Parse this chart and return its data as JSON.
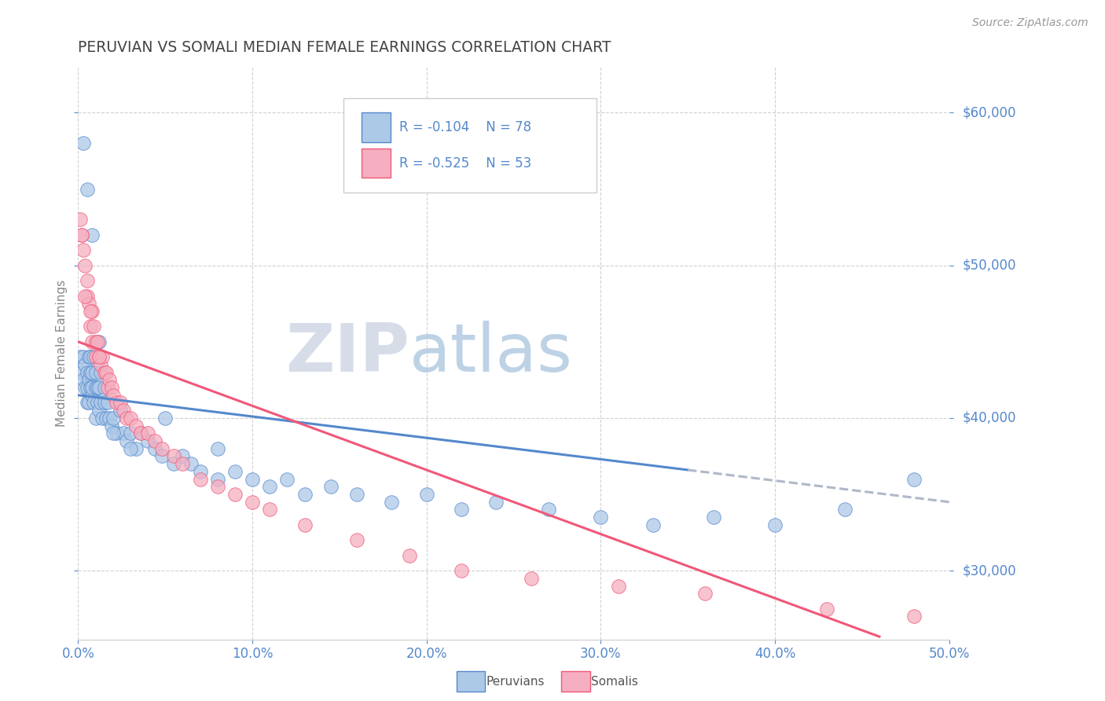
{
  "title": "PERUVIAN VS SOMALI MEDIAN FEMALE EARNINGS CORRELATION CHART",
  "source": "Source: ZipAtlas.com",
  "ylabel": "Median Female Earnings",
  "xlim": [
    0.0,
    0.5
  ],
  "ylim": [
    25500,
    63000
  ],
  "yticks": [
    30000,
    40000,
    50000,
    60000
  ],
  "ytick_labels": [
    "$30,000",
    "$40,000",
    "$50,000",
    "$60,000"
  ],
  "xticks": [
    0.0,
    0.1,
    0.2,
    0.3,
    0.4,
    0.5
  ],
  "xtick_labels": [
    "0.0%",
    "10.0%",
    "20.0%",
    "30.0%",
    "40.0%",
    "50.0%"
  ],
  "peruvian_color": "#adc9e8",
  "somali_color": "#f5afc0",
  "peruvian_line_color": "#5588cc",
  "somali_line_color": "#f05878",
  "regression_ext_color": "#b0b8c8",
  "watermark_zip_color": "#d0d8e4",
  "watermark_atlas_color": "#b8ccdd",
  "background_color": "#ffffff",
  "grid_color": "#cccccc",
  "title_color": "#444444",
  "axis_tick_color": "#5588cc",
  "ylabel_color": "#888888",
  "peruvian_R": "-0.104",
  "peruvian_N": "78",
  "somali_R": "-0.525",
  "somali_N": "53",
  "peruvian_x": [
    0.001,
    0.002,
    0.003,
    0.003,
    0.004,
    0.004,
    0.005,
    0.005,
    0.005,
    0.006,
    0.006,
    0.006,
    0.007,
    0.007,
    0.007,
    0.008,
    0.008,
    0.008,
    0.009,
    0.009,
    0.01,
    0.01,
    0.01,
    0.011,
    0.011,
    0.012,
    0.012,
    0.013,
    0.013,
    0.014,
    0.015,
    0.015,
    0.016,
    0.017,
    0.018,
    0.019,
    0.02,
    0.022,
    0.024,
    0.026,
    0.028,
    0.03,
    0.033,
    0.036,
    0.04,
    0.044,
    0.048,
    0.055,
    0.06,
    0.065,
    0.07,
    0.08,
    0.09,
    0.1,
    0.11,
    0.12,
    0.13,
    0.145,
    0.16,
    0.18,
    0.2,
    0.22,
    0.24,
    0.27,
    0.3,
    0.33,
    0.365,
    0.4,
    0.44,
    0.48,
    0.003,
    0.005,
    0.008,
    0.012,
    0.02,
    0.03,
    0.05,
    0.08
  ],
  "peruvian_y": [
    44000,
    43000,
    42500,
    44000,
    42000,
    43500,
    41000,
    43000,
    42000,
    44000,
    42500,
    41000,
    43000,
    42000,
    44000,
    43000,
    41500,
    42000,
    44000,
    41000,
    42000,
    43000,
    40000,
    42000,
    41000,
    40500,
    42000,
    41000,
    43000,
    40000,
    41000,
    42000,
    40000,
    41000,
    40000,
    39500,
    40000,
    39000,
    40500,
    39000,
    38500,
    39000,
    38000,
    39000,
    38500,
    38000,
    37500,
    37000,
    37500,
    37000,
    36500,
    36000,
    36500,
    36000,
    35500,
    36000,
    35000,
    35500,
    35000,
    34500,
    35000,
    34000,
    34500,
    34000,
    33500,
    33000,
    33500,
    33000,
    34000,
    36000,
    58000,
    55000,
    52000,
    45000,
    39000,
    38000,
    40000,
    38000
  ],
  "somali_x": [
    0.001,
    0.002,
    0.003,
    0.004,
    0.005,
    0.005,
    0.006,
    0.007,
    0.008,
    0.008,
    0.009,
    0.01,
    0.01,
    0.011,
    0.012,
    0.013,
    0.014,
    0.015,
    0.016,
    0.017,
    0.018,
    0.019,
    0.02,
    0.022,
    0.024,
    0.026,
    0.028,
    0.03,
    0.033,
    0.036,
    0.04,
    0.044,
    0.048,
    0.055,
    0.06,
    0.07,
    0.08,
    0.09,
    0.1,
    0.11,
    0.13,
    0.16,
    0.19,
    0.22,
    0.26,
    0.31,
    0.36,
    0.43,
    0.48,
    0.002,
    0.004,
    0.007,
    0.012
  ],
  "somali_y": [
    53000,
    52000,
    51000,
    50000,
    49000,
    48000,
    47500,
    46000,
    47000,
    45000,
    46000,
    45000,
    44000,
    45000,
    44000,
    43500,
    44000,
    43000,
    43000,
    42000,
    42500,
    42000,
    41500,
    41000,
    41000,
    40500,
    40000,
    40000,
    39500,
    39000,
    39000,
    38500,
    38000,
    37500,
    37000,
    36000,
    35500,
    35000,
    34500,
    34000,
    33000,
    32000,
    31000,
    30000,
    29500,
    29000,
    28500,
    27500,
    27000,
    52000,
    48000,
    47000,
    44000
  ],
  "blue_line_x_solid_start": 0.0,
  "blue_line_x_solid_end": 0.35,
  "blue_line_x_dash_end": 0.5,
  "pink_line_x_start": 0.0,
  "pink_line_x_end": 0.46
}
